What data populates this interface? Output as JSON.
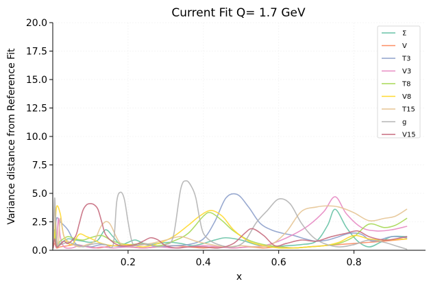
{
  "chart_data": {
    "type": "line",
    "title": "Current Fit Q= 1.7 GeV",
    "xlabel": "x",
    "ylabel": "Variance distance from Reference Fit",
    "xlim": [
      0.0,
      0.99
    ],
    "ylim": [
      0,
      20
    ],
    "xticks": [
      0.2,
      0.4,
      0.6,
      0.8
    ],
    "xtick_labels": [
      "0.2",
      "0.4",
      "0.6",
      "0.8"
    ],
    "yticks": [
      0,
      2.5,
      5,
      7.5,
      10,
      12.5,
      15,
      17.5,
      20
    ],
    "ytick_labels": [
      "0.0",
      "2.5",
      "5.0",
      "7.5",
      "10.0",
      "12.5",
      "15.0",
      "17.5",
      "20.0"
    ],
    "grid": true,
    "legend_position": "top-right",
    "series": [
      {
        "name": "Σ",
        "color": "#66c2a5",
        "x": [
          0.001,
          0.005,
          0.01,
          0.02,
          0.04,
          0.06,
          0.08,
          0.1,
          0.12,
          0.14,
          0.16,
          0.18,
          0.2,
          0.22,
          0.25,
          0.28,
          0.31,
          0.34,
          0.37,
          0.4,
          0.43,
          0.46,
          0.5,
          0.54,
          0.58,
          0.62,
          0.66,
          0.7,
          0.73,
          0.75,
          0.78,
          0.81,
          0.84,
          0.87,
          0.9,
          0.94
        ],
        "values": [
          0.5,
          1.8,
          0.3,
          0.6,
          1.0,
          0.9,
          0.8,
          0.7,
          0.9,
          1.8,
          1.2,
          0.5,
          0.7,
          0.9,
          0.5,
          0.6,
          0.7,
          0.6,
          0.4,
          0.6,
          0.9,
          1.1,
          0.9,
          0.5,
          0.3,
          0.4,
          0.5,
          0.8,
          2.2,
          3.6,
          2.0,
          0.8,
          0.3,
          0.7,
          1.2,
          1.2
        ]
      },
      {
        "name": "V",
        "color": "#fc8d62",
        "x": [
          0.001,
          0.005,
          0.01,
          0.02,
          0.04,
          0.06,
          0.08,
          0.1,
          0.12,
          0.14,
          0.16,
          0.2,
          0.24,
          0.28,
          0.32,
          0.36,
          0.4,
          0.44,
          0.48,
          0.52,
          0.56,
          0.6,
          0.64,
          0.68,
          0.72,
          0.76,
          0.8,
          0.84,
          0.88,
          0.94
        ],
        "values": [
          0.3,
          0.6,
          0.2,
          0.3,
          0.4,
          0.5,
          0.4,
          0.3,
          0.2,
          0.3,
          0.4,
          0.3,
          0.2,
          0.3,
          0.4,
          0.3,
          0.2,
          0.3,
          0.2,
          0.3,
          0.2,
          0.3,
          0.2,
          0.3,
          0.4,
          0.5,
          0.6,
          0.7,
          0.8,
          1.0
        ]
      },
      {
        "name": "T3",
        "color": "#8da0cb",
        "x": [
          0.001,
          0.005,
          0.01,
          0.02,
          0.04,
          0.06,
          0.08,
          0.1,
          0.13,
          0.16,
          0.2,
          0.24,
          0.28,
          0.32,
          0.36,
          0.4,
          0.43,
          0.46,
          0.49,
          0.52,
          0.55,
          0.58,
          0.61,
          0.64,
          0.67,
          0.7,
          0.73,
          0.76,
          0.79,
          0.82,
          0.85,
          0.9,
          0.94
        ],
        "values": [
          0.2,
          1.2,
          2.8,
          2.5,
          1.8,
          0.6,
          0.4,
          0.3,
          0.5,
          0.4,
          0.3,
          0.5,
          0.3,
          0.4,
          0.5,
          1.0,
          2.5,
          4.6,
          4.9,
          3.8,
          2.4,
          1.8,
          1.5,
          1.3,
          1.0,
          0.8,
          0.9,
          1.2,
          1.5,
          1.4,
          0.8,
          1.2,
          1.1
        ]
      },
      {
        "name": "V3",
        "color": "#e78ac3",
        "x": [
          0.001,
          0.005,
          0.01,
          0.015,
          0.02,
          0.03,
          0.05,
          0.07,
          0.09,
          0.11,
          0.13,
          0.16,
          0.2,
          0.24,
          0.28,
          0.32,
          0.36,
          0.4,
          0.44,
          0.48,
          0.52,
          0.56,
          0.6,
          0.64,
          0.68,
          0.72,
          0.75,
          0.78,
          0.82,
          0.86,
          0.9,
          0.94
        ],
        "values": [
          0.2,
          1.0,
          0.3,
          2.8,
          1.2,
          0.3,
          0.2,
          0.4,
          0.3,
          0.2,
          0.3,
          0.2,
          0.3,
          0.2,
          0.3,
          0.2,
          0.3,
          0.4,
          0.3,
          0.2,
          0.3,
          0.4,
          0.8,
          1.4,
          2.2,
          3.4,
          4.7,
          3.2,
          2.0,
          1.7,
          1.8,
          2.1
        ]
      },
      {
        "name": "T8",
        "color": "#a6d854",
        "x": [
          0.001,
          0.005,
          0.01,
          0.02,
          0.04,
          0.06,
          0.08,
          0.1,
          0.13,
          0.16,
          0.2,
          0.24,
          0.28,
          0.32,
          0.36,
          0.4,
          0.42,
          0.45,
          0.48,
          0.52,
          0.56,
          0.6,
          0.64,
          0.68,
          0.72,
          0.76,
          0.8,
          0.84,
          0.88,
          0.91,
          0.94
        ],
        "values": [
          0.2,
          1.6,
          0.4,
          0.8,
          1.2,
          1.0,
          0.9,
          1.1,
          1.3,
          0.8,
          0.5,
          0.6,
          0.4,
          0.8,
          1.5,
          3.0,
          3.3,
          2.6,
          1.7,
          0.9,
          0.5,
          0.3,
          0.2,
          0.3,
          0.4,
          0.6,
          1.2,
          2.3,
          2.0,
          2.2,
          2.8
        ]
      },
      {
        "name": "V8",
        "color": "#ffd92f",
        "x": [
          0.001,
          0.005,
          0.01,
          0.02,
          0.03,
          0.05,
          0.07,
          0.09,
          0.11,
          0.13,
          0.16,
          0.2,
          0.24,
          0.28,
          0.32,
          0.36,
          0.39,
          0.42,
          0.45,
          0.48,
          0.52,
          0.56,
          0.6,
          0.64,
          0.68,
          0.72,
          0.76,
          0.8,
          0.84,
          0.88,
          0.94
        ],
        "values": [
          0.3,
          1.2,
          3.8,
          3.2,
          1.2,
          0.5,
          1.4,
          1.2,
          0.9,
          0.6,
          0.4,
          0.5,
          0.3,
          0.6,
          1.2,
          2.2,
          3.0,
          3.5,
          3.0,
          1.8,
          0.8,
          0.4,
          0.2,
          0.2,
          0.3,
          0.4,
          0.7,
          1.3,
          1.0,
          0.9,
          1.0
        ]
      },
      {
        "name": "T15",
        "color": "#e5c494",
        "x": [
          0.001,
          0.005,
          0.01,
          0.015,
          0.02,
          0.03,
          0.05,
          0.07,
          0.09,
          0.11,
          0.13,
          0.15,
          0.18,
          0.22,
          0.26,
          0.3,
          0.34,
          0.38,
          0.42,
          0.46,
          0.5,
          0.54,
          0.58,
          0.62,
          0.66,
          0.7,
          0.73,
          0.76,
          0.8,
          0.84,
          0.88,
          0.91,
          0.94
        ],
        "values": [
          0.3,
          3.6,
          1.4,
          0.5,
          2.8,
          1.2,
          0.6,
          0.3,
          0.5,
          0.8,
          2.2,
          2.4,
          0.6,
          0.4,
          0.6,
          0.9,
          1.2,
          0.8,
          0.5,
          0.3,
          0.4,
          0.3,
          0.5,
          1.6,
          3.4,
          3.8,
          3.9,
          3.8,
          3.3,
          2.6,
          2.8,
          3.0,
          3.6
        ]
      },
      {
        "name": "g",
        "color": "#b3b3b3",
        "x": [
          0.001,
          0.005,
          0.01,
          0.02,
          0.04,
          0.06,
          0.08,
          0.1,
          0.12,
          0.14,
          0.16,
          0.17,
          0.18,
          0.19,
          0.2,
          0.21,
          0.22,
          0.24,
          0.26,
          0.28,
          0.3,
          0.32,
          0.34,
          0.355,
          0.37,
          0.38,
          0.39,
          0.4,
          0.42,
          0.45,
          0.48,
          0.51,
          0.54,
          0.57,
          0.6,
          0.63,
          0.66,
          0.69,
          0.72,
          0.76,
          0.8,
          0.84,
          0.88,
          0.91,
          0.94
        ],
        "values": [
          0.2,
          4.6,
          0.8,
          0.5,
          0.7,
          0.5,
          0.3,
          0.5,
          0.6,
          0.5,
          0.4,
          4.3,
          5.1,
          4.5,
          2.5,
          0.8,
          0.4,
          0.6,
          0.5,
          0.3,
          0.5,
          1.2,
          5.4,
          6.1,
          5.5,
          4.6,
          2.8,
          1.5,
          0.8,
          0.4,
          0.3,
          0.8,
          2.4,
          3.5,
          4.5,
          4.1,
          2.4,
          1.2,
          0.6,
          0.3,
          0.5,
          0.9,
          0.7,
          0.4,
          0.1
        ]
      },
      {
        "name": "V15",
        "color": "#c76b7e",
        "x": [
          0.001,
          0.005,
          0.01,
          0.02,
          0.03,
          0.04,
          0.06,
          0.07,
          0.08,
          0.09,
          0.1,
          0.11,
          0.12,
          0.13,
          0.14,
          0.16,
          0.18,
          0.2,
          0.22,
          0.24,
          0.26,
          0.28,
          0.3,
          0.33,
          0.36,
          0.4,
          0.44,
          0.48,
          0.51,
          0.53,
          0.56,
          0.59,
          0.62,
          0.66,
          0.7,
          0.74,
          0.78,
          0.81,
          0.84,
          0.88,
          0.91,
          0.94
        ],
        "values": [
          0.2,
          1.0,
          0.3,
          0.5,
          0.8,
          0.6,
          1.2,
          2.3,
          3.5,
          4.0,
          4.1,
          4.0,
          3.6,
          2.5,
          1.4,
          0.7,
          0.4,
          0.4,
          0.5,
          0.8,
          1.1,
          0.9,
          0.4,
          0.2,
          0.3,
          0.3,
          0.2,
          0.6,
          1.5,
          1.9,
          1.3,
          0.4,
          0.6,
          0.9,
          0.8,
          1.2,
          1.5,
          1.7,
          1.2,
          0.9,
          1.0,
          1.2
        ]
      }
    ]
  }
}
